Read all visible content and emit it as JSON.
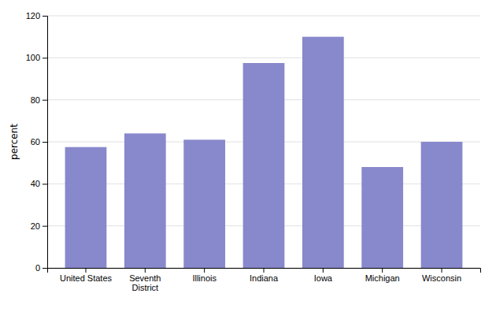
{
  "chart_data": {
    "type": "bar",
    "ylabel": "percent",
    "categories": [
      "United States",
      "Seventh\nDistrict",
      "Illinois",
      "Indiana",
      "Iowa",
      "Michigan",
      "Wisconsin"
    ],
    "values": [
      57.5,
      64,
      61,
      97.5,
      110,
      48,
      60
    ],
    "color": "#8888cc",
    "ylim": [
      0,
      120
    ],
    "yticks": [
      0,
      20,
      40,
      60,
      80,
      100,
      120
    ],
    "grid": true
  }
}
